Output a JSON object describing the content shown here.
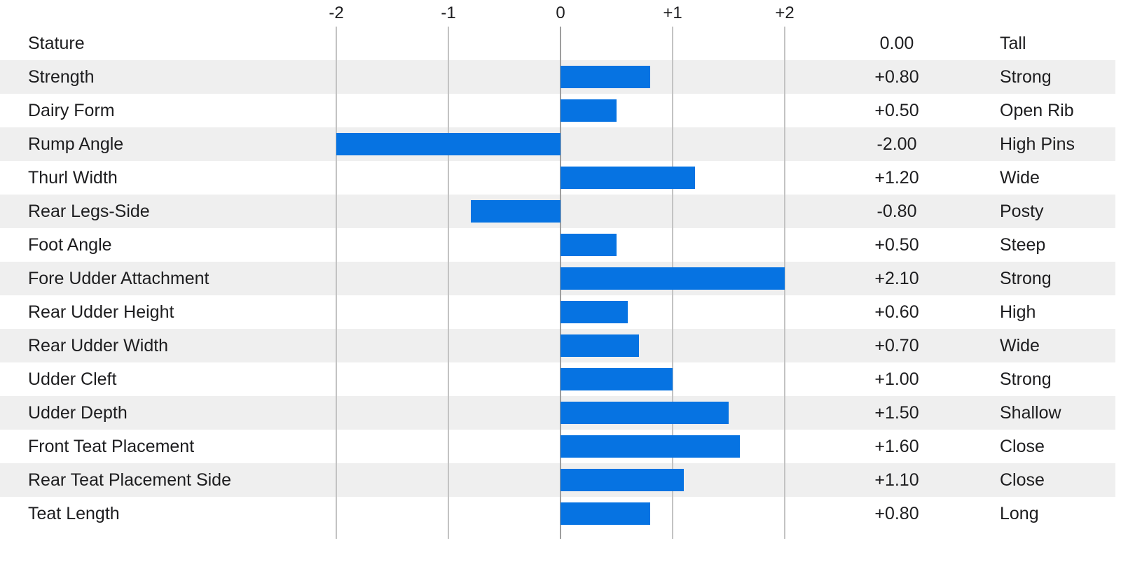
{
  "chart_data": {
    "type": "bar",
    "orientation": "horizontal",
    "xlim": [
      -2,
      2
    ],
    "grid": true,
    "bar_clamp": [
      -2,
      2
    ],
    "x_tick_labels": [
      "-2",
      "-1",
      "0",
      "+1",
      "+2"
    ],
    "x_tick_values": [
      -2,
      -1,
      0,
      1,
      2
    ],
    "categories": [
      "Stature",
      "Strength",
      "Dairy Form",
      "Rump Angle",
      "Thurl Width",
      "Rear Legs-Side",
      "Foot Angle",
      "Fore Udder Attachment",
      "Rear Udder Height",
      "Rear Udder Width",
      "Udder Cleft",
      "Udder Depth",
      "Front Teat Placement",
      "Rear Teat Placement Side",
      "Teat Length"
    ],
    "values": [
      0.0,
      0.8,
      0.5,
      -2.0,
      1.2,
      -0.8,
      0.5,
      2.1,
      0.6,
      0.7,
      1.0,
      1.5,
      1.6,
      1.1,
      0.8
    ],
    "value_labels": [
      "0.00",
      "+0.80",
      "+0.50",
      "-2.00",
      "+1.20",
      "-0.80",
      "+0.50",
      "+2.10",
      "+0.60",
      "+0.70",
      "+1.00",
      "+1.50",
      "+1.60",
      "+1.10",
      "+0.80"
    ],
    "descriptors": [
      "Tall",
      "Strong",
      "Open Rib",
      "High Pins",
      "Wide",
      "Posty",
      "Steep",
      "Strong",
      "High",
      "Wide",
      "Strong",
      "Shallow",
      "Close",
      "Close",
      "Long"
    ],
    "colors": {
      "bar": "#0673e2",
      "stripe": "#efefef",
      "gridline": "#c3c3c3",
      "zero_line": "#9e9e9e",
      "text": "#1d1d1f",
      "background": "#ffffff"
    }
  }
}
